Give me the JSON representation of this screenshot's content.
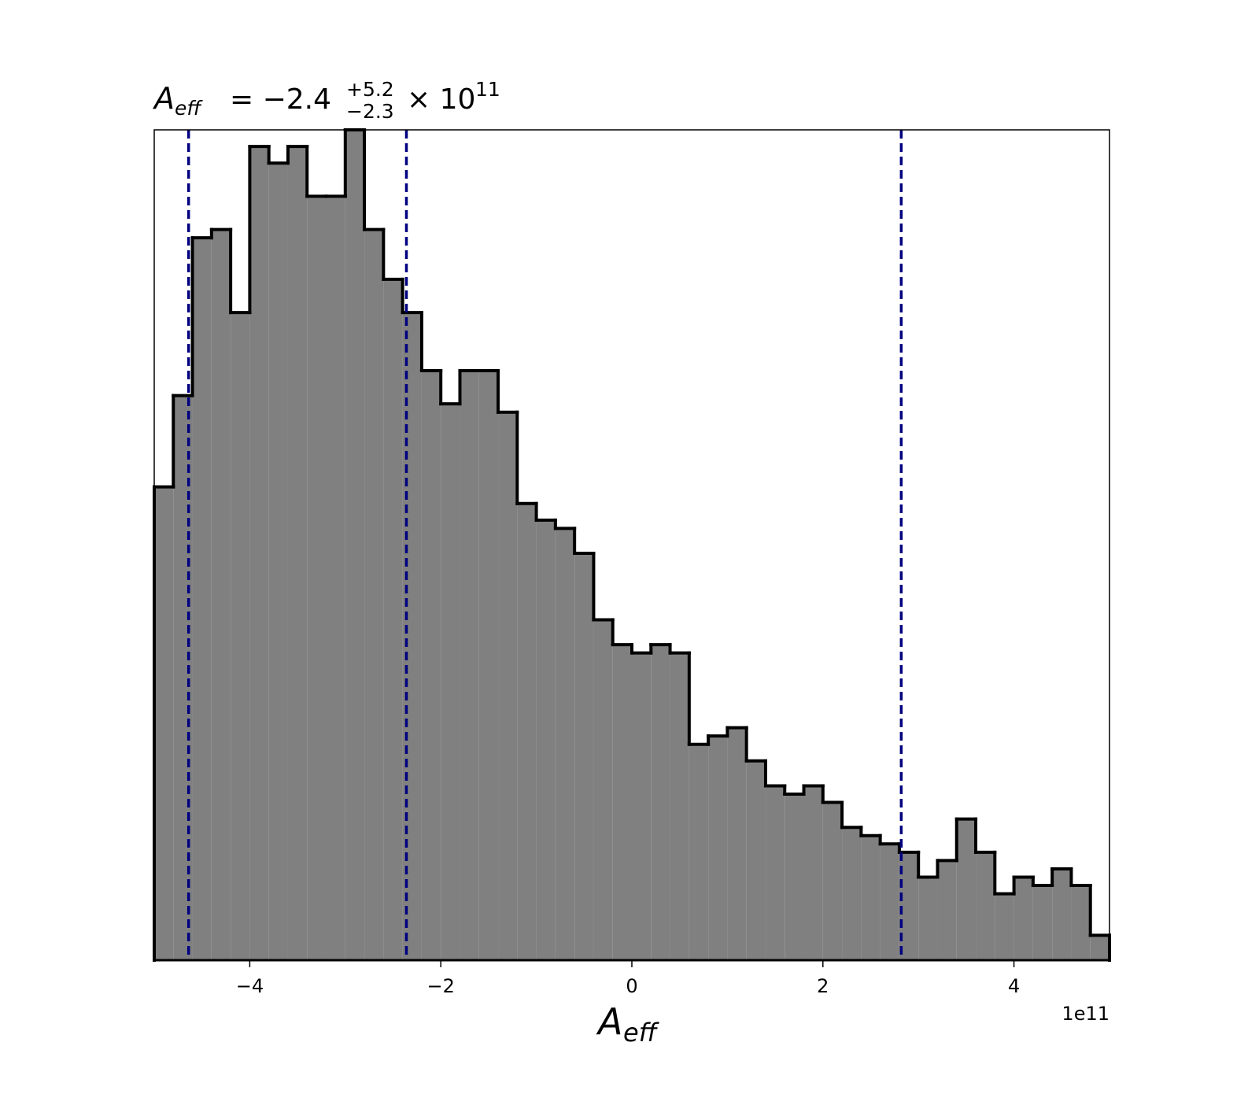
{
  "chart_data": {
    "type": "histogram",
    "title": {
      "symbol": "A",
      "subscript": "eff",
      "equals": "= −2.4",
      "upper": "+5.2",
      "lower": "−2.3",
      "times": "× 10",
      "exponent": "11"
    },
    "xlabel": {
      "symbol": "A",
      "subscript": "eff"
    },
    "x_offset_label": "1e11",
    "bins": [
      -5,
      -4.8,
      -4.6,
      -4.4,
      -4.2,
      -4,
      -3.8,
      -3.6,
      -3.4,
      -3.2,
      -3,
      -2.8,
      -2.6,
      -2.4,
      -2.2,
      -2,
      -1.8,
      -1.6,
      -1.4,
      -1.2,
      -1,
      -0.8,
      -0.6,
      -0.4,
      -0.2,
      0,
      0.2,
      0.4,
      0.6,
      0.8,
      1,
      1.2,
      1.4,
      1.6,
      1.8,
      2,
      2.2,
      2.4,
      2.6,
      2.8,
      3,
      3.2,
      3.4,
      3.6,
      3.8,
      4,
      4.2,
      4.4,
      4.6,
      4.8,
      5
    ],
    "values": [
      57,
      68,
      87,
      88,
      78,
      98,
      96,
      98,
      92,
      92,
      100,
      88,
      82,
      78,
      71,
      67,
      71,
      71,
      66,
      55,
      53,
      52,
      49,
      41,
      38,
      37,
      38,
      37,
      26,
      27,
      28,
      24,
      21,
      20,
      21,
      19,
      16,
      15,
      14,
      13,
      10,
      12,
      17,
      13,
      8,
      10,
      9,
      11,
      9,
      3
    ],
    "color": "#808080",
    "edge_color": "#000000",
    "vlines": [
      -4.64,
      -2.36,
      2.82
    ],
    "vline_color": "#000080",
    "xlim": [
      -5,
      5
    ],
    "ylim": [
      0,
      100
    ],
    "xticks": [
      {
        "value": -4,
        "label": "−4"
      },
      {
        "value": -2,
        "label": "−2"
      },
      0,
      2,
      4
    ]
  }
}
